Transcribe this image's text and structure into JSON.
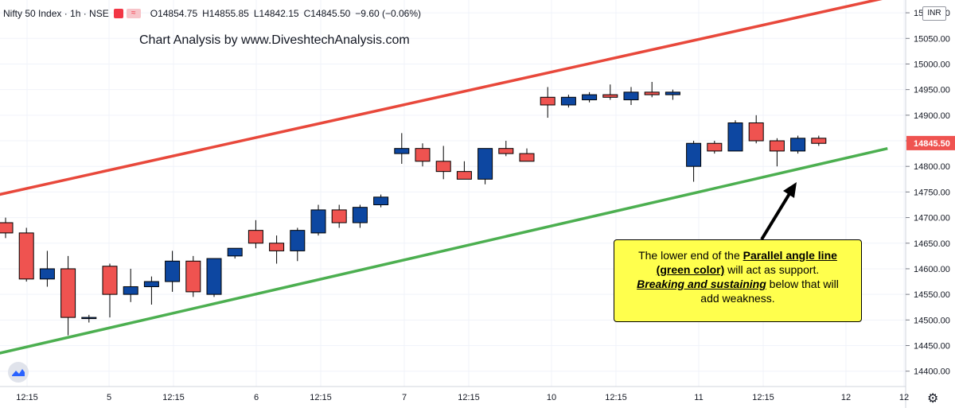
{
  "header": {
    "symbol": "Nifty 50 Index · 1h · NSE",
    "ohlc_o": "O14854.75",
    "ohlc_h": "H14855.85",
    "ohlc_l": "L14842.15",
    "ohlc_c": "C14845.50",
    "change": "−9.60 (−0.06%)",
    "flag_icon": "≈"
  },
  "watermark": "Chart Analysis by www.DiveshtechAnalysis.com",
  "currency": "INR",
  "callout": {
    "l1a": "The lower end of the ",
    "l1b": "Parallel angle line",
    "l2a": "(green color)",
    "l2b": " will act as support.",
    "l3a": "Breaking and sustaining",
    "l3b": " below that will",
    "l4": "add weakness."
  },
  "colors": {
    "up": "#0d47a1",
    "down": "#ef5350",
    "upper_channel": "#e8483b",
    "lower_channel": "#4caf50",
    "price_tag": "#ef5350"
  },
  "chart_data": {
    "type": "candlestick",
    "ylim": [
      14370,
      15125
    ],
    "y_ticks": [
      14400,
      14450,
      14500,
      14550,
      14600,
      14650,
      14700,
      14750,
      14800,
      14850,
      14900,
      14950,
      15000,
      15050,
      15100
    ],
    "y_tick_labels": [
      "14400.00",
      "14450.00",
      "14500.00",
      "14550.00",
      "14600.00",
      "14650.00",
      "14700.00",
      "14750.00",
      "14800.00",
      "14850.00",
      "14900.00",
      "14950.00",
      "15000.00",
      "15050.00",
      "15100.00"
    ],
    "x_tick_labels": [
      "12:15",
      "5",
      "12:15",
      "6",
      "12:15",
      "7",
      "12:15",
      "10",
      "12:15",
      "11",
      "12:15",
      "12",
      "12"
    ],
    "last_price": 14845.5,
    "last_price_label": "14845.50",
    "candles": [
      {
        "o": 14690,
        "h": 14700,
        "l": 14660,
        "c": 14670
      },
      {
        "o": 14670,
        "h": 14680,
        "l": 14575,
        "c": 14580
      },
      {
        "o": 14580,
        "h": 14635,
        "l": 14565,
        "c": 14600
      },
      {
        "o": 14600,
        "h": 14625,
        "l": 14470,
        "c": 14505
      },
      {
        "o": 14505,
        "h": 14510,
        "l": 14495,
        "c": 14505
      },
      {
        "o": 14605,
        "h": 14610,
        "l": 14505,
        "c": 14550
      },
      {
        "o": 14550,
        "h": 14600,
        "l": 14535,
        "c": 14565
      },
      {
        "o": 14565,
        "h": 14585,
        "l": 14530,
        "c": 14575
      },
      {
        "o": 14575,
        "h": 14635,
        "l": 14555,
        "c": 14615
      },
      {
        "o": 14615,
        "h": 14625,
        "l": 14545,
        "c": 14555
      },
      {
        "o": 14550,
        "h": 14620,
        "l": 14545,
        "c": 14620
      },
      {
        "o": 14625,
        "h": 14640,
        "l": 14620,
        "c": 14640
      },
      {
        "o": 14675,
        "h": 14695,
        "l": 14640,
        "c": 14650
      },
      {
        "o": 14650,
        "h": 14665,
        "l": 14610,
        "c": 14635
      },
      {
        "o": 14635,
        "h": 14680,
        "l": 14615,
        "c": 14675
      },
      {
        "o": 14670,
        "h": 14725,
        "l": 14665,
        "c": 14715
      },
      {
        "o": 14715,
        "h": 14725,
        "l": 14680,
        "c": 14690
      },
      {
        "o": 14690,
        "h": 14725,
        "l": 14680,
        "c": 14720
      },
      {
        "o": 14725,
        "h": 14745,
        "l": 14720,
        "c": 14740
      },
      {
        "o": 14825,
        "h": 14865,
        "l": 14805,
        "c": 14835
      },
      {
        "o": 14835,
        "h": 14845,
        "l": 14800,
        "c": 14810
      },
      {
        "o": 14810,
        "h": 14840,
        "l": 14775,
        "c": 14790
      },
      {
        "o": 14790,
        "h": 14810,
        "l": 14775,
        "c": 14775
      },
      {
        "o": 14775,
        "h": 14835,
        "l": 14765,
        "c": 14835
      },
      {
        "o": 14835,
        "h": 14850,
        "l": 14820,
        "c": 14825
      },
      {
        "o": 14825,
        "h": 14835,
        "l": 14810,
        "c": 14810
      },
      {
        "o": 14935,
        "h": 14955,
        "l": 14895,
        "c": 14920
      },
      {
        "o": 14920,
        "h": 14940,
        "l": 14915,
        "c": 14935
      },
      {
        "o": 14930,
        "h": 14945,
        "l": 14925,
        "c": 14940
      },
      {
        "o": 14940,
        "h": 14960,
        "l": 14930,
        "c": 14935
      },
      {
        "o": 14930,
        "h": 14955,
        "l": 14920,
        "c": 14945
      },
      {
        "o": 14945,
        "h": 14965,
        "l": 14935,
        "c": 14940
      },
      {
        "o": 14940,
        "h": 14950,
        "l": 14930,
        "c": 14945
      },
      {
        "o": 14800,
        "h": 14850,
        "l": 14770,
        "c": 14845
      },
      {
        "o": 14845,
        "h": 14850,
        "l": 14825,
        "c": 14830
      },
      {
        "o": 14830,
        "h": 14890,
        "l": 14830,
        "c": 14885
      },
      {
        "o": 14885,
        "h": 14900,
        "l": 14845,
        "c": 14850
      },
      {
        "o": 14850,
        "h": 14855,
        "l": 14800,
        "c": 14830
      },
      {
        "o": 14830,
        "h": 14860,
        "l": 14825,
        "c": 14855
      },
      {
        "o": 14855,
        "h": 14860,
        "l": 14840,
        "c": 14845
      }
    ],
    "upper_channel": [
      {
        "bar": -0.3,
        "price": 14745
      },
      {
        "bar": 42.3,
        "price": 15130
      }
    ],
    "lower_channel": [
      {
        "bar": -0.3,
        "price": 14435
      },
      {
        "bar": 42.3,
        "price": 14835
      }
    ]
  }
}
